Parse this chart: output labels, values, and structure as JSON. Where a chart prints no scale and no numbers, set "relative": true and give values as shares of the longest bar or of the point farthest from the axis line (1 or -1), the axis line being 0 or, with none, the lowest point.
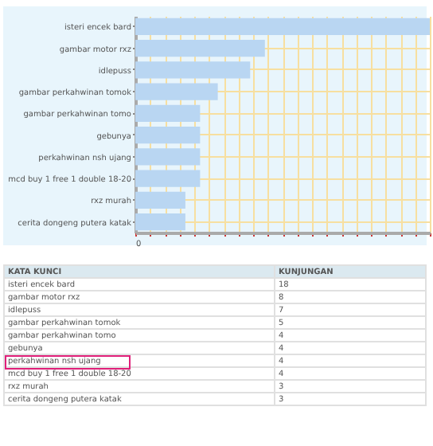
{
  "chart_data": [
    {
      "type": "bar",
      "orientation": "horizontal",
      "relative": true,
      "categories": [
        "isteri encek bard",
        "gambar motor rxz",
        "idlepuss",
        "gambar perkahwinan tomok",
        "gambar perkahwinan tomo",
        "gebunya",
        "perkahwinan nsh ujang",
        "mcd buy 1 free 1 double 18-20",
        "rxz murah",
        "cerita dongeng putera katak"
      ],
      "values": [
        1,
        0.44,
        0.39,
        0.28,
        0.22,
        0.22,
        0.22,
        0.22,
        0.17,
        0.17
      ],
      "color": "#b9d6f2",
      "annotations": [
        "0"
      ],
      "grid": true
    },
    {
      "type": "other",
      "annotations": [
        "KATA KUNCI",
        "KUNJUNGAN",
        "isteri encek bard",
        "18",
        "gambar motor rxz",
        "8",
        "idlepuss",
        "7",
        "gambar perkahwinan tomok",
        "5",
        "gambar perkahwinan tomo",
        "4",
        "gebunya",
        "4",
        "perkahwinan nsh ujang",
        "4",
        "mcd buy 1 free 1 double 18-20",
        "4",
        "rxz murah",
        "3",
        "cerita dongeng putera katak",
        "3"
      ]
    }
  ]
}
